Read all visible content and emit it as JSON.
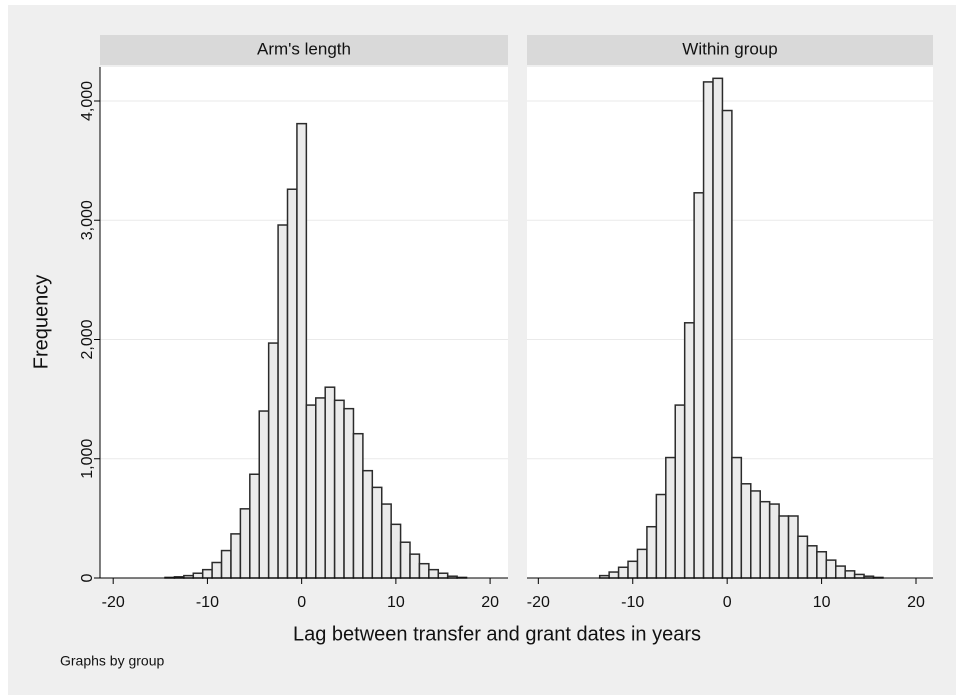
{
  "ylabel": "Frequency",
  "xlabel": "Lag between transfer and grant dates in years",
  "note": "Graphs by group",
  "chart_data": [
    {
      "type": "histogram",
      "title": "Arm's length",
      "bins": [
        -14.5,
        -13.5,
        -12.5,
        -11.5,
        -10.5,
        -9.5,
        -8.5,
        -7.5,
        -6.5,
        -5.5,
        -4.5,
        -3.5,
        -2.5,
        -1.5,
        -0.5,
        0.5,
        1.5,
        2.5,
        3.5,
        4.5,
        5.5,
        6.5,
        7.5,
        8.5,
        9.5,
        10.5,
        11.5,
        12.5,
        13.5,
        14.5,
        15.5,
        16.5,
        17.5
      ],
      "values": [
        5,
        10,
        20,
        40,
        70,
        130,
        230,
        370,
        580,
        870,
        1400,
        1970,
        2960,
        3260,
        3810,
        1450,
        1510,
        1600,
        1490,
        1420,
        1210,
        900,
        760,
        620,
        450,
        300,
        200,
        120,
        70,
        40,
        15,
        5
      ],
      "xlim": [
        -21.4,
        21.9
      ],
      "xticks": [
        -20,
        -10,
        0,
        10,
        20
      ],
      "ylim": [
        0,
        4285
      ],
      "yticks": [
        0,
        {
          "value": 1000,
          "label": "1,000"
        },
        {
          "value": 2000,
          "label": "2,000"
        },
        {
          "value": 3000,
          "label": "3,000"
        },
        {
          "value": 4000,
          "label": "4,000"
        }
      ],
      "grid": true,
      "color": "#ebebeb"
    },
    {
      "type": "histogram",
      "title": "Within group",
      "bins": [
        -13.5,
        -12.5,
        -11.5,
        -10.5,
        -9.5,
        -8.5,
        -7.5,
        -6.5,
        -5.5,
        -4.5,
        -3.5,
        -2.5,
        -1.5,
        -0.5,
        0.5,
        1.5,
        2.5,
        3.5,
        4.5,
        5.5,
        6.5,
        7.5,
        8.5,
        9.5,
        10.5,
        11.5,
        12.5,
        13.5,
        14.5,
        15.5,
        16.5
      ],
      "values": [
        20,
        50,
        90,
        140,
        240,
        430,
        700,
        1010,
        1450,
        2140,
        3230,
        4160,
        4190,
        3920,
        1010,
        790,
        730,
        640,
        620,
        520,
        520,
        350,
        270,
        220,
        150,
        100,
        60,
        30,
        15,
        5
      ],
      "xlim": [
        -21.2,
        21.8
      ],
      "xticks": [
        -20,
        -10,
        0,
        10,
        20
      ],
      "ylim": [
        0,
        4285
      ],
      "yticks": [
        0,
        {
          "value": 1000,
          "label": "1,000"
        },
        {
          "value": 2000,
          "label": "2,000"
        },
        {
          "value": 3000,
          "label": "3,000"
        },
        {
          "value": 4000,
          "label": "4,000"
        }
      ],
      "grid": true,
      "color": "#ebebeb"
    }
  ]
}
